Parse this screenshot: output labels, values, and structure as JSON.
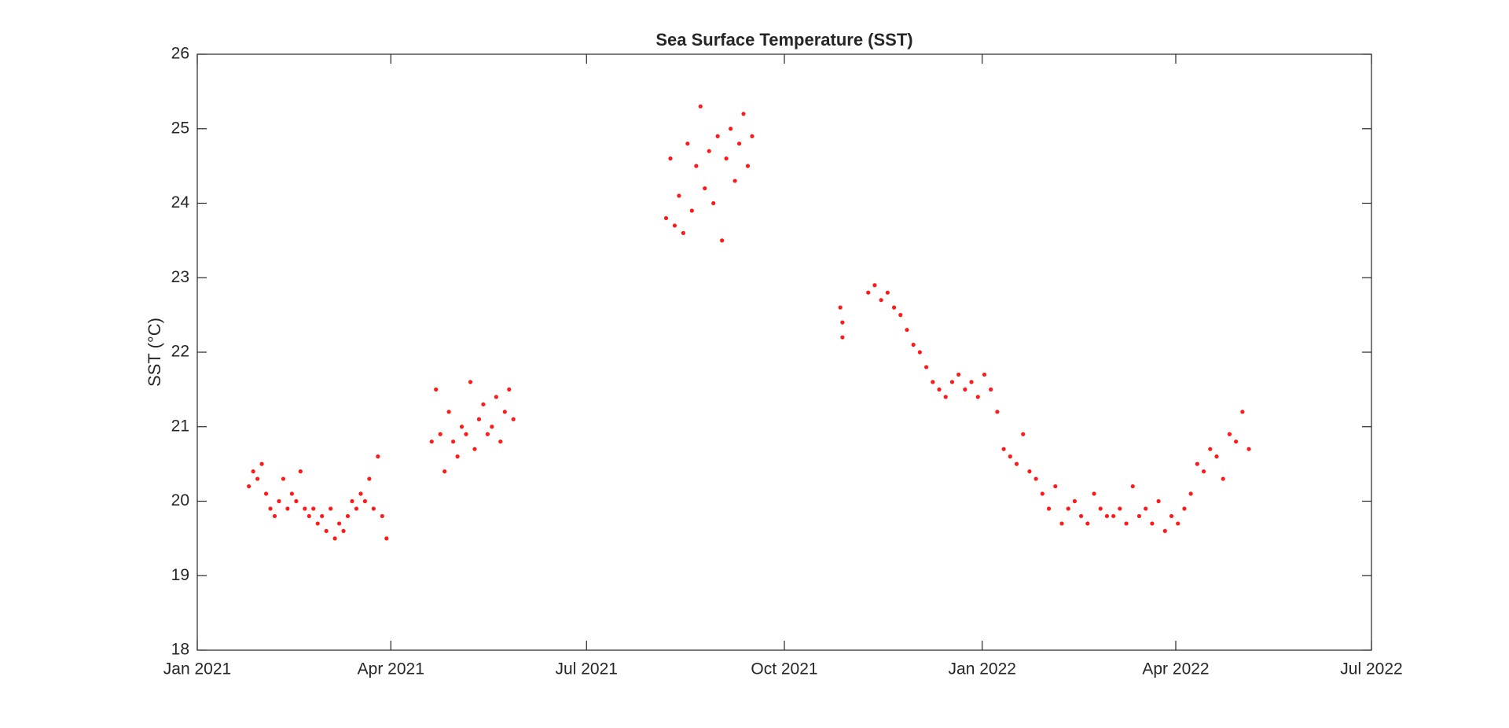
{
  "chart_data": {
    "type": "scatter",
    "title": "Sea Surface Temperature (SST)",
    "y_label": "SST (°C)",
    "series": [
      {
        "color": "#ff1a1a",
        "x": [
          24,
          26,
          28,
          30,
          32,
          34,
          36,
          38,
          40,
          42,
          44,
          46,
          48,
          50,
          52,
          54,
          56,
          58,
          60,
          62,
          64,
          66,
          68,
          70,
          72,
          74,
          76,
          78,
          80,
          82,
          84,
          86,
          88,
          109,
          111,
          113,
          115,
          117,
          119,
          121,
          123,
          125,
          127,
          129,
          131,
          133,
          135,
          137,
          139,
          141,
          143,
          145,
          147,
          218,
          220,
          222,
          224,
          226,
          228,
          230,
          232,
          234,
          236,
          238,
          240,
          242,
          244,
          246,
          248,
          250,
          252,
          254,
          256,
          258,
          299,
          300,
          300,
          312,
          315,
          318,
          321,
          324,
          327,
          330,
          333,
          336,
          339,
          342,
          345,
          348,
          351,
          354,
          357,
          360,
          363,
          366,
          369,
          372,
          375,
          378,
          381,
          384,
          387,
          390,
          393,
          396,
          399,
          402,
          405,
          408,
          411,
          414,
          417,
          420,
          423,
          426,
          429,
          432,
          435,
          438,
          441,
          444,
          447,
          450,
          453,
          456,
          459,
          462,
          465,
          468,
          471,
          474,
          477,
          480,
          483,
          486,
          489
        ],
        "values": [
          20.2,
          20.4,
          20.3,
          20.5,
          20.1,
          19.9,
          19.8,
          20.0,
          20.3,
          19.9,
          20.1,
          20.0,
          20.4,
          19.9,
          19.8,
          19.9,
          19.7,
          19.8,
          19.6,
          19.9,
          19.5,
          19.7,
          19.6,
          19.8,
          20.0,
          19.9,
          20.1,
          20.0,
          20.3,
          19.9,
          20.6,
          19.8,
          19.5,
          20.8,
          21.5,
          20.9,
          20.4,
          21.2,
          20.8,
          20.6,
          21.0,
          20.9,
          21.6,
          20.7,
          21.1,
          21.3,
          20.9,
          21.0,
          21.4,
          20.8,
          21.2,
          21.5,
          21.1,
          23.8,
          24.6,
          23.7,
          24.1,
          23.6,
          24.8,
          23.9,
          24.5,
          25.3,
          24.2,
          24.7,
          24.0,
          24.9,
          23.5,
          24.6,
          25.0,
          24.3,
          24.8,
          25.2,
          24.5,
          24.9,
          22.6,
          22.4,
          22.2,
          22.8,
          22.9,
          22.7,
          22.8,
          22.6,
          22.5,
          22.3,
          22.1,
          22.0,
          21.8,
          21.6,
          21.5,
          21.4,
          21.6,
          21.7,
          21.5,
          21.6,
          21.4,
          21.7,
          21.5,
          21.2,
          20.7,
          20.6,
          20.5,
          20.9,
          20.4,
          20.3,
          20.1,
          19.9,
          20.2,
          19.7,
          19.9,
          20.0,
          19.8,
          19.7,
          20.1,
          19.9,
          19.8,
          19.8,
          19.9,
          19.7,
          20.2,
          19.8,
          19.9,
          19.7,
          20.0,
          19.6,
          19.8,
          19.7,
          19.9,
          20.1,
          20.5,
          20.4,
          20.7,
          20.6,
          20.3,
          20.9,
          20.8,
          21.2,
          20.7
        ]
      }
    ],
    "xlim": [
      0,
      546
    ],
    "xticks": [
      {
        "value": 0,
        "label": "Jan 2021"
      },
      {
        "value": 90,
        "label": "Apr 2021"
      },
      {
        "value": 181,
        "label": "Jul 2021"
      },
      {
        "value": 273,
        "label": "Oct 2021"
      },
      {
        "value": 365,
        "label": "Jan 2022"
      },
      {
        "value": 455,
        "label": "Apr 2022"
      },
      {
        "value": 546,
        "label": "Jul 2022"
      }
    ],
    "ylim": [
      18,
      26
    ],
    "yticks": [
      18,
      19,
      20,
      21,
      22,
      23,
      24,
      25,
      26
    ],
    "grid": false
  }
}
